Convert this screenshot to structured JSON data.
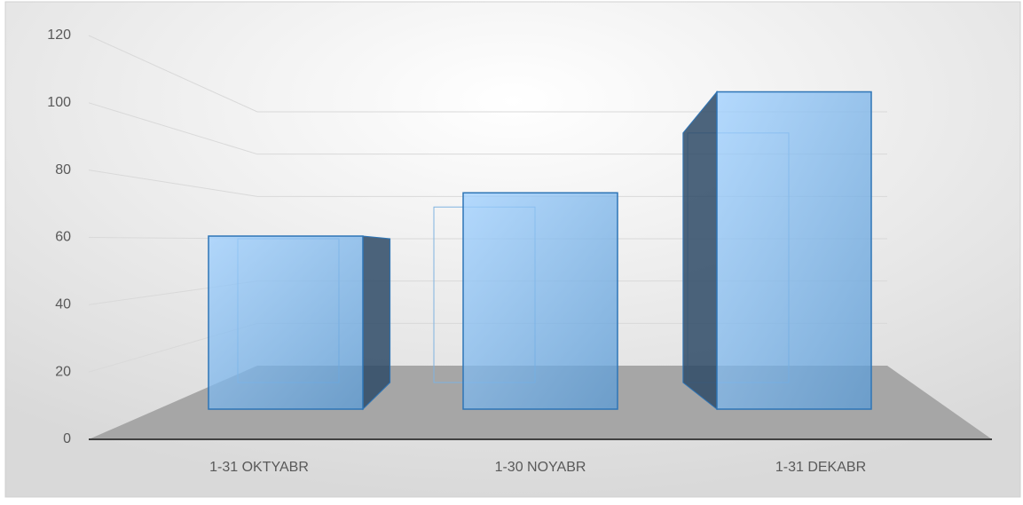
{
  "chart_data": {
    "type": "bar3d",
    "categories": [
      "1-31 OKTYABR",
      "1-30 NOYABR",
      "1-31 DEKABR"
    ],
    "values": [
      60,
      75,
      110
    ],
    "color": "#5b9bd5",
    "ylim": [
      0,
      120
    ],
    "yticks": [
      0,
      20,
      40,
      60,
      80,
      100,
      120
    ],
    "grid": true
  }
}
